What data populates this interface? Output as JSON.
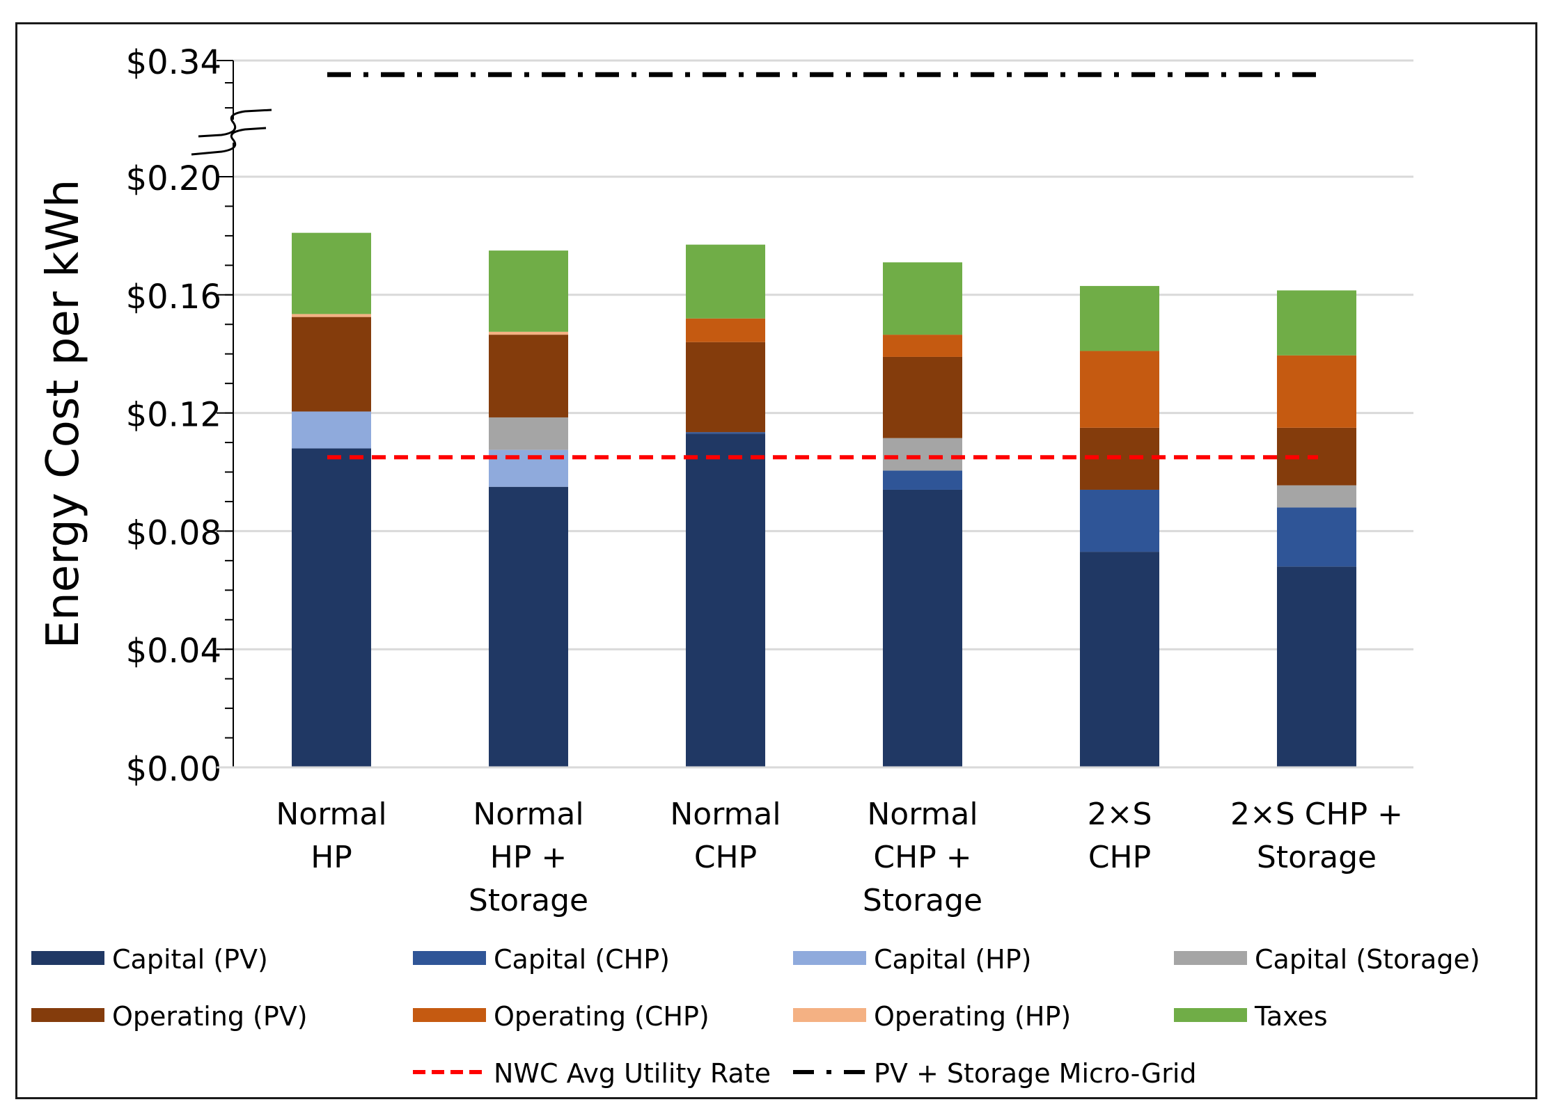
{
  "chart_data": {
    "type": "bar",
    "stacked": true,
    "title": "",
    "xlabel": "",
    "ylabel": "Energy Cost per kWh",
    "ylim": [
      0,
      0.34
    ],
    "axis_break": [
      0.2,
      0.33
    ],
    "yticks": [
      {
        "value": 0.0,
        "label": "$0.00"
      },
      {
        "value": 0.04,
        "label": "$0.04"
      },
      {
        "value": 0.08,
        "label": "$0.08"
      },
      {
        "value": 0.12,
        "label": "$0.12"
      },
      {
        "value": 0.16,
        "label": "$0.16"
      },
      {
        "value": 0.2,
        "label": "$0.20"
      },
      {
        "value": 0.34,
        "label": "$0.34"
      }
    ],
    "categories": [
      [
        "Normal",
        "HP"
      ],
      [
        "Normal",
        "HP +",
        "Storage"
      ],
      [
        "Normal",
        "CHP"
      ],
      [
        "Normal",
        "CHP +",
        "Storage"
      ],
      [
        "2×S",
        "CHP"
      ],
      [
        "2×S CHP +",
        "Storage"
      ]
    ],
    "series": [
      {
        "name": "Capital (PV)",
        "color": "#203864",
        "values": [
          0.108,
          0.095,
          0.113,
          0.094,
          0.073,
          0.068
        ]
      },
      {
        "name": "Capital (CHP)",
        "color": "#2F5597",
        "values": [
          0,
          0,
          0.0005,
          0.0065,
          0.021,
          0.02
        ]
      },
      {
        "name": "Capital (HP)",
        "color": "#8FAADC",
        "values": [
          0.0125,
          0.0125,
          0,
          0,
          0,
          0
        ]
      },
      {
        "name": "Capital (Storage)",
        "color": "#A5A5A5",
        "values": [
          0,
          0.011,
          0,
          0.011,
          0,
          0.0075
        ]
      },
      {
        "name": "Operating (PV)",
        "color": "#843C0C",
        "values": [
          0.032,
          0.028,
          0.0305,
          0.0275,
          0.021,
          0.0195
        ]
      },
      {
        "name": "Operating (CHP)",
        "color": "#C55A11",
        "values": [
          0,
          0,
          0.008,
          0.0075,
          0.026,
          0.0245
        ]
      },
      {
        "name": "Operating (HP)",
        "color": "#F4B183",
        "values": [
          0.001,
          0.001,
          0,
          0,
          0,
          0
        ]
      },
      {
        "name": "Taxes",
        "color": "#70AD47",
        "values": [
          0.0275,
          0.0275,
          0.025,
          0.0245,
          0.022,
          0.022
        ]
      }
    ],
    "reference_lines": [
      {
        "name": "NWC Avg Utility Rate",
        "color": "#FF0000",
        "style": "dashed",
        "value": 0.105
      },
      {
        "name": "PV + Storage Micro-Grid",
        "color": "#000000",
        "style": "dash-dot",
        "value": 0.333
      }
    ],
    "legend_position": "bottom",
    "grid": true
  }
}
